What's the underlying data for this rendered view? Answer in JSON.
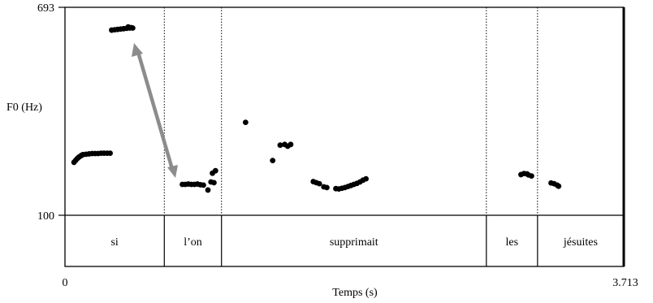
{
  "chart_data": {
    "type": "scatter",
    "title": "",
    "xlabel": "Temps (s)",
    "ylabel": "F0 (Hz)",
    "xlim": [
      0,
      3.713
    ],
    "ylim": [
      100,
      693
    ],
    "x_tick_labels": [
      "0",
      "3.713"
    ],
    "y_tick_labels": [
      "693",
      "100"
    ],
    "grid": false,
    "intervals": [
      {
        "label": "si",
        "start": 0,
        "end": 0.66
      },
      {
        "label": "l’on",
        "start": 0.66,
        "end": 1.04
      },
      {
        "label": "supprimait",
        "start": 1.04,
        "end": 2.8
      },
      {
        "label": "les",
        "start": 2.8,
        "end": 3.14
      },
      {
        "label": "jésuites",
        "start": 3.14,
        "end": 3.713
      }
    ],
    "boundaries": [
      0.66,
      1.04,
      2.8,
      3.14
    ],
    "series": [
      {
        "points": [
          [
            0.06,
            251
          ],
          [
            0.07,
            256
          ],
          [
            0.08,
            261
          ],
          [
            0.09,
            265
          ],
          [
            0.1,
            268
          ],
          [
            0.11,
            271
          ],
          [
            0.12,
            273
          ],
          [
            0.14,
            274
          ],
          [
            0.16,
            275
          ],
          [
            0.18,
            276
          ],
          [
            0.2,
            276
          ],
          [
            0.22,
            276
          ],
          [
            0.24,
            277
          ],
          [
            0.26,
            277
          ],
          [
            0.28,
            277
          ],
          [
            0.3,
            277
          ],
          [
            0.31,
            628
          ],
          [
            0.33,
            629
          ],
          [
            0.35,
            630
          ],
          [
            0.37,
            631
          ],
          [
            0.39,
            632
          ],
          [
            0.41,
            633
          ],
          [
            0.42,
            637
          ],
          [
            0.43,
            634
          ],
          [
            0.44,
            635
          ],
          [
            0.45,
            634
          ],
          [
            0.78,
            188
          ],
          [
            0.8,
            188
          ],
          [
            0.82,
            189
          ],
          [
            0.84,
            188
          ],
          [
            0.86,
            188
          ],
          [
            0.88,
            189
          ],
          [
            0.9,
            187
          ],
          [
            0.92,
            186
          ],
          [
            0.95,
            172
          ],
          [
            0.97,
            195
          ],
          [
            0.99,
            193
          ],
          [
            0.98,
            220
          ],
          [
            1.0,
            227
          ],
          [
            1.2,
            365
          ],
          [
            1.38,
            256
          ],
          [
            1.43,
            300
          ],
          [
            1.46,
            302
          ],
          [
            1.48,
            297
          ],
          [
            1.5,
            302
          ],
          [
            1.65,
            196
          ],
          [
            1.67,
            193
          ],
          [
            1.69,
            190
          ],
          [
            1.72,
            181
          ],
          [
            1.74,
            179
          ],
          [
            1.8,
            176
          ],
          [
            1.82,
            175
          ],
          [
            1.84,
            177
          ],
          [
            1.86,
            179
          ],
          [
            1.88,
            182
          ],
          [
            1.9,
            185
          ],
          [
            1.92,
            188
          ],
          [
            1.94,
            191
          ],
          [
            1.96,
            195
          ],
          [
            1.98,
            200
          ],
          [
            2.0,
            204
          ],
          [
            3.03,
            216
          ],
          [
            3.05,
            219
          ],
          [
            3.07,
            218
          ],
          [
            3.08,
            215
          ],
          [
            3.1,
            212
          ],
          [
            3.23,
            192
          ],
          [
            3.25,
            190
          ],
          [
            3.27,
            186
          ],
          [
            3.28,
            183
          ]
        ]
      }
    ]
  }
}
